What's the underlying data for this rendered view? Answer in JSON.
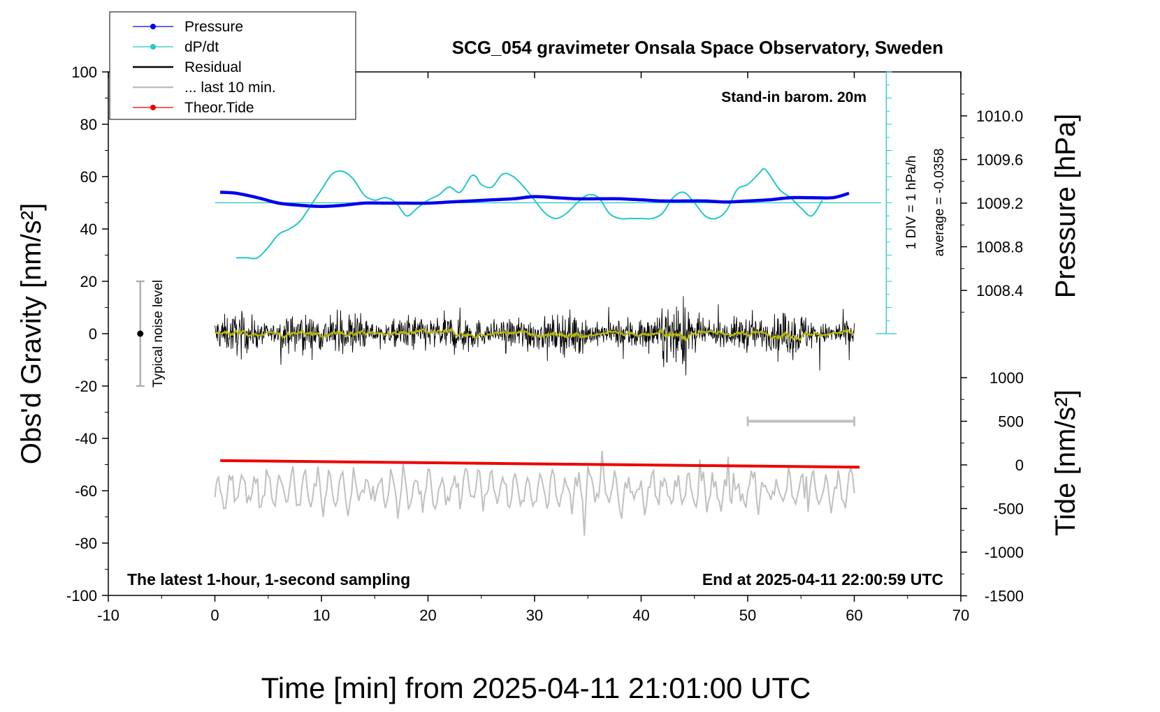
{
  "title": "SCG_054 gravimeter Onsala Space Observatory, Sweden",
  "barometer_note": "Stand-in barom. 20m",
  "bottom_left_note": "The latest 1-hour, 1-second sampling",
  "bottom_right_note": "End at 2025-04-11 22:00:59 UTC",
  "xlabel": "Time [min] from 2025-04-11 21:01:00 UTC",
  "ylabel_left": "Obs'd Gravity [nm/s²]",
  "ylabel_right_top": "Pressure [hPa]",
  "ylabel_right_bottom": "Tide [nm/s²]",
  "noise_label": "Typical noise level",
  "dpdt_scale_label": "1 DIV = 1 hPa/h",
  "dpdt_average_label": "average = -0.0358",
  "colors": {
    "pressure": "#0000ee",
    "dpdt": "#22c8c8",
    "residual": "#000000",
    "last10": "#c0c0c0",
    "tide": "#ee0000",
    "smooth": "#b8b800"
  },
  "legend": [
    {
      "label": "Pressure",
      "color": "#0000ee",
      "marker": true
    },
    {
      "label": "dP/dt",
      "color": "#22c8c8",
      "marker": true
    },
    {
      "label": "Residual",
      "color": "#000000",
      "marker": false
    },
    {
      "label": "... last 10 min.",
      "color": "#c0c0c0",
      "marker": false
    },
    {
      "label": "Theor.Tide",
      "color": "#ee0000",
      "marker": true
    }
  ],
  "chart_data": {
    "type": "line",
    "x_ticks": [
      "-10",
      "0",
      "10",
      "20",
      "30",
      "40",
      "50",
      "60",
      "70"
    ],
    "xlim": [
      -10,
      70
    ],
    "y_ticks_left": [
      "100",
      "80",
      "60",
      "40",
      "20",
      "0",
      "-20",
      "-40",
      "-60",
      "-80",
      "-100"
    ],
    "ylim_left": [
      -100,
      100
    ],
    "pressure_ticks": [
      "1010.0",
      "1009.6",
      "1009.2",
      "1008.8",
      "1008.4"
    ],
    "pressure_ticks_values": [
      1010.0,
      1009.6,
      1009.2,
      1008.8,
      1008.4
    ],
    "tide_ticks": [
      "1000",
      "500",
      "0",
      "-500",
      "-1000",
      "-1500"
    ],
    "tide_ticks_values": [
      1000,
      500,
      0,
      -500,
      -1000,
      -1500
    ],
    "series": [
      {
        "name": "Pressure",
        "unit": "hPa",
        "x": [
          0.5,
          2,
          4,
          6,
          8,
          10,
          12,
          14,
          16,
          18,
          20,
          22,
          24,
          26,
          28,
          30,
          32,
          34,
          36,
          38,
          40,
          42,
          44,
          46,
          48,
          50,
          52,
          54,
          56,
          58,
          59.5
        ],
        "values": [
          1009.3,
          1009.29,
          1009.25,
          1009.2,
          1009.18,
          1009.17,
          1009.18,
          1009.2,
          1009.2,
          1009.2,
          1009.2,
          1009.21,
          1009.22,
          1009.23,
          1009.24,
          1009.26,
          1009.25,
          1009.24,
          1009.24,
          1009.24,
          1009.23,
          1009.22,
          1009.22,
          1009.22,
          1009.21,
          1009.22,
          1009.23,
          1009.25,
          1009.25,
          1009.25,
          1009.29
        ]
      },
      {
        "name": "dP/dt",
        "unit": "nm/s² plot offset (50 = 0 hPa/h)",
        "x": [
          2,
          3,
          4,
          5,
          6,
          7,
          8,
          9,
          10,
          11,
          12,
          13,
          14,
          15,
          16,
          17,
          18,
          19,
          20,
          21,
          22,
          23,
          24,
          24.5,
          25,
          26,
          27,
          28,
          29,
          30,
          31,
          32,
          33,
          34,
          35,
          36,
          37,
          38,
          39,
          40,
          41,
          42,
          43,
          44,
          45,
          46,
          47,
          48,
          49,
          50,
          51,
          51.5,
          52,
          53,
          54,
          55,
          56,
          57
        ],
        "values": [
          29,
          29,
          29,
          33,
          38,
          40,
          43,
          49,
          55,
          61,
          62,
          59,
          53,
          51,
          52,
          50,
          45,
          48,
          51,
          53,
          56,
          54,
          60,
          60,
          57,
          56,
          61,
          60,
          56,
          51,
          46,
          44,
          46,
          50,
          53,
          52,
          46,
          44,
          44,
          44,
          44,
          46,
          52,
          54,
          50,
          45,
          44,
          47,
          55,
          57,
          61,
          63,
          61,
          55,
          52,
          48,
          45,
          51
        ]
      },
      {
        "name": "Residual",
        "unit": "nm/s²",
        "x_range": [
          0,
          60
        ],
        "amplitude_envelope": [
          6,
          12
        ],
        "typical_amplitude": 7,
        "peak_near_x": 43,
        "peak_value": 13
      },
      {
        "name": "... last 10 min.",
        "bar_x_range": [
          50,
          60
        ],
        "bar_tide_level": 500
      },
      {
        "name": "Theor.Tide",
        "unit": "nm/s²",
        "x": [
          0.5,
          60.5
        ],
        "values": [
          -48.5,
          -51
        ]
      }
    ],
    "residual_detail_offset": -60,
    "noise_bar": {
      "x": -7,
      "center": 0,
      "half_width": 20
    },
    "dpdt_axis": {
      "x": 63,
      "zero_level": 50
    }
  }
}
